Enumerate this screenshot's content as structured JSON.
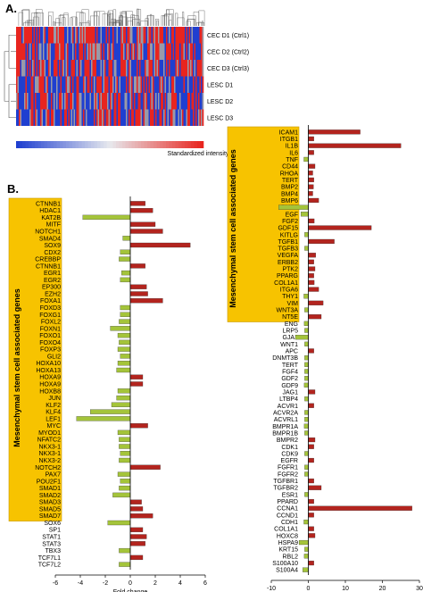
{
  "panel_a": {
    "label": "A.",
    "rows": [
      "CEC D1 (Ctrl1)",
      "CEC D2 (Ctrl2)",
      "CEC D3 (Ctrl3)",
      "LESC D1",
      "LESC D2",
      "LESC D3"
    ],
    "colorbar_label": "Standardized intensity"
  },
  "panel_b": {
    "label": "B.",
    "left_group_label": "Mesenchymal stem cell associated genes",
    "right_group_label": "Mesenchymal stem cell associated genes"
  },
  "colors": {
    "up": "#b3241e",
    "down": "#a4c43a",
    "highlight": "#f7c300",
    "heat_red": "#e8251f",
    "heat_blue": "#1f3fd0"
  },
  "chart_data": [
    {
      "type": "bar",
      "orientation": "horizontal",
      "xlabel": "Fold change",
      "xlim": [
        -6,
        6
      ],
      "xticks": [
        -6,
        -4,
        -2,
        0,
        2,
        4,
        6
      ],
      "categories": [
        "CTNNB1",
        "HDAC1",
        "KAT2B",
        "MITF",
        "NOTCH1",
        "SMAD4",
        "SOX9",
        "CDX2",
        "CREBBP",
        "CTNNB1",
        "EGR1",
        "EGR2",
        "EP300",
        "EZH2",
        "FOXA1",
        "FOXD3",
        "FOXG1",
        "FOXL2",
        "FOXN1",
        "FOXO1",
        "FOXO4",
        "FOXP3",
        "GLI2",
        "HOXA10",
        "HOXA13",
        "HOXA9",
        "HOXA9",
        "HOXB8",
        "JUN",
        "KLF2",
        "KLF4",
        "LEF1",
        "MYC",
        "MYOD1",
        "NFATC2",
        "NKX3-1",
        "NKX3-1",
        "NKX3-2",
        "NOTCH2",
        "PAX7",
        "POU2F1",
        "SMAD1",
        "SMAD2",
        "SMAD3",
        "SMAD5",
        "SMAD7",
        "SOX6",
        "SP1",
        "STAT1",
        "STAT3",
        "TBX3",
        "TCF7L1",
        "TCF7L2"
      ],
      "values": [
        1.2,
        1.8,
        -3.8,
        2.0,
        2.6,
        -0.6,
        4.8,
        -0.8,
        -0.9,
        1.2,
        -0.7,
        -0.8,
        1.3,
        1.4,
        2.6,
        -0.8,
        -0.8,
        -0.9,
        -1.6,
        -1.0,
        -0.9,
        -1.0,
        -0.8,
        -1.0,
        -1.1,
        1.0,
        1.0,
        -1.0,
        -1.1,
        -1.5,
        -3.2,
        -4.3,
        1.4,
        -1.0,
        -0.9,
        -0.9,
        -0.8,
        -0.9,
        2.4,
        -1.0,
        -0.8,
        -0.9,
        -1.4,
        0.9,
        1.0,
        1.8,
        -1.8,
        1.0,
        1.3,
        1.2,
        -0.9,
        1.0,
        -0.9
      ],
      "highlight_range": [
        "CTNNB1",
        "SMAD7"
      ]
    },
    {
      "type": "bar",
      "orientation": "horizontal",
      "xlabel": "Fold change",
      "xlim": [
        -10,
        30
      ],
      "xticks": [
        -10,
        0,
        10,
        20,
        30
      ],
      "categories": [
        "ICAM1",
        "ITGB1",
        "IL1B",
        "IL6",
        "TNF",
        "CD44",
        "RHOA",
        "TERT",
        "BMP2",
        "BMP4",
        "BMP6",
        "BMP7",
        "EGF",
        "FGF2",
        "GDF15",
        "KITLG",
        "TGFB1",
        "TGFB3",
        "VEGFA",
        "ERBB2",
        "PTK2",
        "PPARG",
        "COL1A1",
        "ITGA6",
        "THY1",
        "VIM",
        "WNT3A",
        "NT5E",
        "ENG",
        "LRP5",
        "GJA1",
        "WNT1",
        "APC",
        "DNMT3B",
        "TERT",
        "FGF4",
        "GDF2",
        "GDF9",
        "JAG1",
        "LTBP4",
        "ACVR1",
        "ACVR2A",
        "ACVRL1",
        "BMPR1A",
        "BMPR1B",
        "BMPR2",
        "CDK1",
        "CDK9",
        "EGFR",
        "FGFR1",
        "FGFR2",
        "TGFBR1",
        "TGFBR2",
        "ESR1",
        "PPARD",
        "CCNA1",
        "CCND1",
        "CDH1",
        "COL1A1",
        "HOXC8",
        "HSPA9",
        "KRT15",
        "RBL2",
        "S100A10",
        "S100A4"
      ],
      "values": [
        14,
        1.5,
        25,
        1.5,
        -1.2,
        1.8,
        1.2,
        1.5,
        1.4,
        1.2,
        2.8,
        -8,
        -2,
        1.6,
        17,
        -1.0,
        7,
        -1.0,
        2.0,
        1.5,
        1.8,
        1.5,
        1.6,
        2.8,
        -1.2,
        4.0,
        -1.0,
        3.5,
        -1.1,
        -1.0,
        -3.5,
        -1.0,
        1.5,
        -1.0,
        -1.0,
        -1.0,
        -1.0,
        -1.1,
        1.8,
        -1.0,
        1.5,
        -1.0,
        -1.0,
        -1.1,
        -1.0,
        1.8,
        1.5,
        -1.0,
        1.5,
        -1.0,
        -1.0,
        1.5,
        3.5,
        -1.0,
        1.5,
        28,
        1.5,
        -1.2,
        1.5,
        1.8,
        -2.5,
        -1.0,
        -1.1,
        1.5,
        -1.5
      ],
      "highlight_range": [
        "ICAM1",
        "NT5E"
      ]
    }
  ]
}
